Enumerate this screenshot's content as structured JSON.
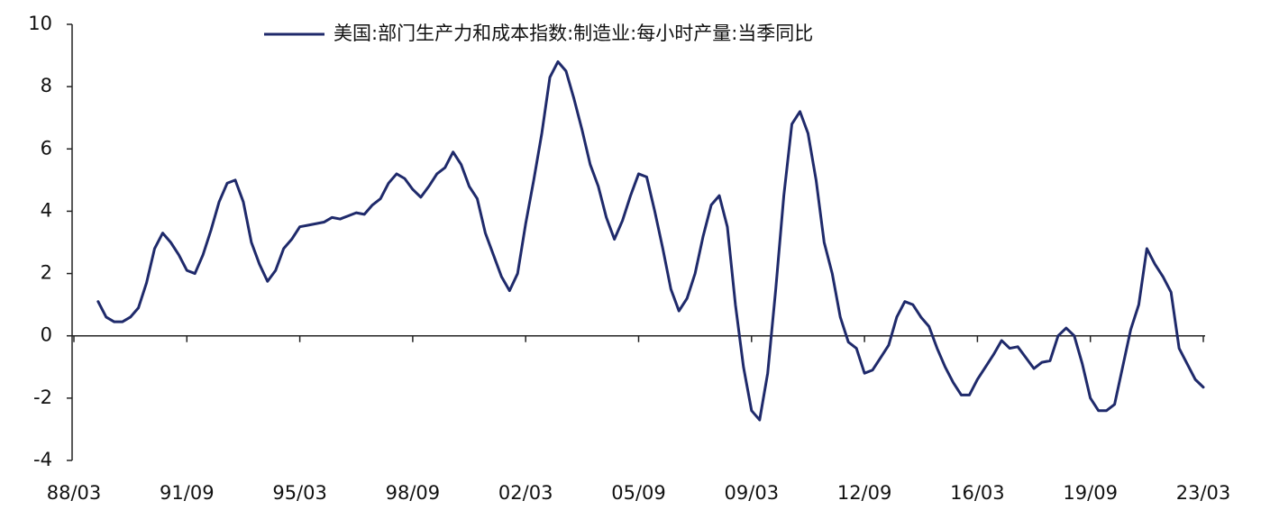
{
  "chart_data": {
    "type": "line",
    "categories": [
      "88/03",
      null,
      null,
      null,
      null,
      null,
      null,
      null,
      null,
      null,
      null,
      null,
      null,
      null,
      "91/09",
      null,
      null,
      null,
      null,
      null,
      null,
      null,
      null,
      null,
      null,
      null,
      null,
      null,
      "95/03",
      null,
      null,
      null,
      null,
      null,
      null,
      null,
      null,
      null,
      null,
      null,
      null,
      null,
      "98/09",
      null,
      null,
      null,
      null,
      null,
      null,
      null,
      null,
      null,
      null,
      null,
      null,
      null,
      "02/03",
      null,
      null,
      null,
      null,
      null,
      null,
      null,
      null,
      null,
      null,
      null,
      null,
      null,
      "05/09",
      null,
      null,
      null,
      null,
      null,
      null,
      null,
      null,
      null,
      null,
      null,
      null,
      null,
      "09/03",
      null,
      null,
      null,
      null,
      null,
      null,
      null,
      null,
      null,
      null,
      null,
      null,
      null,
      "12/09",
      null,
      null,
      null,
      null,
      null,
      null,
      null,
      null,
      null,
      null,
      null,
      null,
      null,
      "16/03",
      null,
      null,
      null,
      null,
      null,
      null,
      null,
      null,
      null,
      null,
      null,
      null,
      null,
      "19/09",
      null,
      null,
      null,
      null,
      null,
      null,
      null,
      null,
      null,
      null,
      null,
      null,
      null,
      "23/03"
    ],
    "series": [
      {
        "name": "美国:部门生产力和成本指数:制造业:每小时产量:当季同比",
        "color": "#1f2a6b",
        "values": [
          null,
          null,
          null,
          1.1,
          0.6,
          0.45,
          0.45,
          0.6,
          0.9,
          1.7,
          2.8,
          3.3,
          3.0,
          2.6,
          2.1,
          2.0,
          2.6,
          3.4,
          4.3,
          4.9,
          5.0,
          4.3,
          3.0,
          2.3,
          1.75,
          2.1,
          2.8,
          3.1,
          3.5,
          3.55,
          3.6,
          3.65,
          3.8,
          3.75,
          3.85,
          3.95,
          3.9,
          4.2,
          4.4,
          4.9,
          5.2,
          5.05,
          4.7,
          4.45,
          4.8,
          5.2,
          5.4,
          5.9,
          5.5,
          4.8,
          4.4,
          3.3,
          2.6,
          1.9,
          1.45,
          2.0,
          3.6,
          5.0,
          6.5,
          8.3,
          8.8,
          8.5,
          7.6,
          6.6,
          5.5,
          4.8,
          3.8,
          3.1,
          3.7,
          4.5,
          5.2,
          5.1,
          4.0,
          2.8,
          1.5,
          0.8,
          1.2,
          2.0,
          3.2,
          4.2,
          4.5,
          3.5,
          1.0,
          -1.0,
          -2.4,
          -2.7,
          -1.2,
          1.5,
          4.5,
          6.8,
          7.2,
          6.5,
          5.0,
          3.0,
          2.0,
          0.6,
          -0.2,
          -0.4,
          -1.2,
          -1.1,
          -0.7,
          -0.3,
          0.6,
          1.1,
          1.0,
          0.6,
          0.3,
          -0.4,
          -1.0,
          -1.5,
          -1.9,
          -1.9,
          -1.4,
          -1.0,
          -0.6,
          -0.15,
          -0.4,
          -0.35,
          -0.7,
          -1.05,
          -0.85,
          -0.8,
          0.0,
          0.25,
          0.0,
          -0.9,
          -2.0,
          -2.4,
          -2.4,
          -2.2,
          -1.0,
          0.2,
          1.0,
          2.8,
          2.3,
          1.9,
          1.4,
          -0.4,
          -0.9,
          -1.4,
          -1.65
        ]
      }
    ],
    "ylim": [
      -4,
      10
    ],
    "yticks": [
      -4,
      -2,
      0,
      2,
      4,
      6,
      8,
      10
    ],
    "grid": false,
    "legend": "top"
  }
}
